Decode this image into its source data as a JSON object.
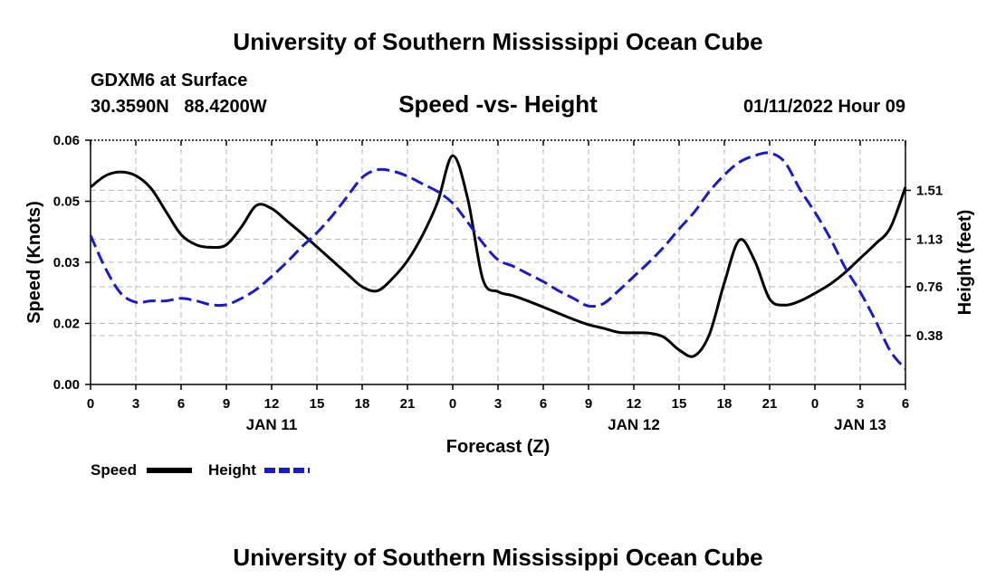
{
  "header": {
    "title": "University of Southern Mississippi Ocean Cube",
    "station": "GDXM6 at Surface",
    "location": "30.3590N   88.4200W",
    "chart_title": "Speed -vs- Height",
    "datetime": "01/11/2022 Hour 09"
  },
  "footer": {
    "title": "University of Southern Mississippi Ocean Cube"
  },
  "legend": {
    "speed_label": "Speed",
    "height_label": "Height"
  },
  "colors": {
    "speed": "#000000",
    "height": "#1a1acc",
    "grid": "#b8b8b8"
  },
  "chart_data": {
    "type": "line",
    "title": "Speed -vs- Height",
    "xlabel": "Forecast (Z)",
    "ylabel": "Speed (Knots)",
    "y2label": "Height (feet)",
    "x_unit": "hours from 00Z Jan 11",
    "xlim": [
      0,
      54
    ],
    "ylim": [
      0,
      0.06
    ],
    "y2lim": [
      0.0,
      1.9
    ],
    "x_ticks": [
      0,
      3,
      6,
      9,
      12,
      15,
      18,
      21,
      24,
      27,
      30,
      33,
      36,
      39,
      42,
      45,
      48,
      51,
      54
    ],
    "x_tick_labels": [
      "0",
      "3",
      "6",
      "9",
      "12",
      "15",
      "18",
      "21",
      "0",
      "3",
      "6",
      "9",
      "12",
      "15",
      "18",
      "21",
      "0",
      "3",
      "6"
    ],
    "date_labels": [
      {
        "x": 12,
        "label": "JAN 11"
      },
      {
        "x": 36,
        "label": "JAN 12"
      },
      {
        "x": 51,
        "label": "JAN 13"
      }
    ],
    "y_ticks": [
      0.0,
      0.015,
      0.03,
      0.045,
      0.06
    ],
    "y_tick_labels": [
      "0.00",
      "0.02",
      "0.03",
      "0.05",
      "0.06"
    ],
    "y2_ticks": [
      0.38,
      0.76,
      1.13,
      1.51
    ],
    "y2_tick_labels": [
      "0.38",
      "0.76",
      "1.13",
      "1.51"
    ],
    "series": [
      {
        "name": "Speed",
        "axis": "left",
        "style": "solid",
        "x": [
          0,
          1,
          2,
          3,
          4,
          5,
          6,
          7,
          8,
          9,
          10,
          11,
          12,
          13,
          14,
          15,
          16,
          17,
          18,
          19,
          20,
          21,
          22,
          23,
          24,
          25,
          26,
          27,
          28,
          29,
          30,
          31,
          32,
          33,
          34,
          35,
          36,
          37,
          38,
          39,
          40,
          41,
          42,
          43,
          44,
          45,
          46,
          47,
          48,
          49,
          50,
          51,
          52,
          53,
          54
        ],
        "values": [
          0.0485,
          0.0513,
          0.0522,
          0.0513,
          0.0482,
          0.0425,
          0.0368,
          0.0343,
          0.0337,
          0.0343,
          0.0387,
          0.044,
          0.0432,
          0.0402,
          0.0371,
          0.0338,
          0.0305,
          0.0272,
          0.024,
          0.023,
          0.026,
          0.0304,
          0.0367,
          0.0448,
          0.0562,
          0.0455,
          0.0258,
          0.0228,
          0.0218,
          0.0205,
          0.019,
          0.0175,
          0.016,
          0.0147,
          0.0138,
          0.0128,
          0.0127,
          0.0126,
          0.0116,
          0.0085,
          0.007,
          0.0122,
          0.025,
          0.0355,
          0.0305,
          0.021,
          0.0195,
          0.0205,
          0.0224,
          0.0246,
          0.0275,
          0.031,
          0.0345,
          0.0385,
          0.0485
        ]
      },
      {
        "name": "Height",
        "axis": "right",
        "style": "dashed",
        "x": [
          0,
          1,
          2,
          3,
          4,
          5,
          6,
          7,
          8,
          9,
          10,
          11,
          12,
          13,
          14,
          15,
          16,
          17,
          18,
          19,
          20,
          21,
          22,
          23,
          24,
          25,
          26,
          27,
          28,
          29,
          30,
          31,
          32,
          33,
          34,
          35,
          36,
          37,
          38,
          39,
          40,
          41,
          42,
          43,
          44,
          45,
          46,
          47,
          48,
          49,
          50,
          51,
          52,
          53,
          54
        ],
        "values": [
          1.16,
          0.9,
          0.71,
          0.64,
          0.65,
          0.65,
          0.67,
          0.65,
          0.62,
          0.62,
          0.67,
          0.74,
          0.84,
          0.95,
          1.07,
          1.18,
          1.31,
          1.46,
          1.61,
          1.67,
          1.66,
          1.62,
          1.56,
          1.5,
          1.41,
          1.26,
          1.1,
          0.97,
          0.92,
          0.86,
          0.8,
          0.73,
          0.67,
          0.61,
          0.63,
          0.73,
          0.84,
          0.95,
          1.07,
          1.21,
          1.34,
          1.5,
          1.63,
          1.73,
          1.78,
          1.8,
          1.73,
          1.52,
          1.34,
          1.14,
          0.91,
          0.72,
          0.5,
          0.26,
          0.12
        ]
      }
    ]
  }
}
